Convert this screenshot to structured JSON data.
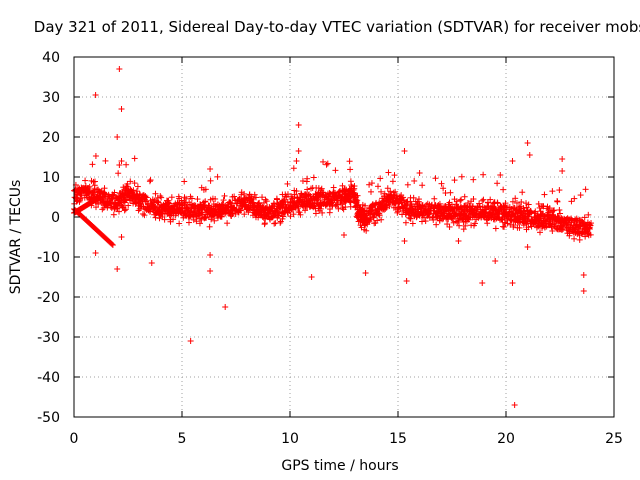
{
  "chart_data": {
    "type": "scatter",
    "title": "Day 321 of 2011, Sidereal Day-to-day VTEC variation (SDTVAR) for receiver mobs",
    "xlabel": "GPS time / hours",
    "ylabel": "SDTVAR / TECUs",
    "xlim": [
      0,
      25
    ],
    "ylim": [
      -50,
      40
    ],
    "xticks": [
      0,
      5,
      10,
      15,
      20,
      25
    ],
    "yticks": [
      40,
      30,
      20,
      10,
      0,
      -10,
      -20,
      -30,
      -40,
      -50
    ],
    "xtick_labels": [
      "0",
      "5",
      "10",
      "15",
      "20",
      "25"
    ],
    "ytick_labels": [
      "40",
      "30",
      "20",
      "10",
      "0",
      "-10",
      "-20",
      "-30",
      "-40",
      "-50"
    ],
    "grid": true,
    "marker": "+",
    "color": "#ff0000",
    "dense_trend": [
      [
        0.0,
        5.0
      ],
      [
        0.5,
        6.0
      ],
      [
        1.0,
        5.5
      ],
      [
        1.5,
        4.5
      ],
      [
        2.0,
        3.5
      ],
      [
        2.5,
        6.0
      ],
      [
        3.0,
        4.5
      ],
      [
        3.5,
        3.0
      ],
      [
        4.0,
        2.0
      ],
      [
        4.5,
        2.0
      ],
      [
        5.0,
        2.0
      ],
      [
        5.5,
        1.5
      ],
      [
        6.0,
        1.5
      ],
      [
        6.5,
        1.5
      ],
      [
        7.0,
        2.0
      ],
      [
        7.5,
        2.5
      ],
      [
        8.0,
        3.5
      ],
      [
        8.5,
        2.0
      ],
      [
        9.0,
        1.0
      ],
      [
        9.5,
        2.0
      ],
      [
        10.0,
        3.0
      ],
      [
        10.5,
        4.0
      ],
      [
        11.0,
        4.0
      ],
      [
        11.5,
        4.5
      ],
      [
        12.0,
        4.5
      ],
      [
        12.5,
        5.0
      ],
      [
        12.9,
        6.0
      ],
      [
        13.2,
        1.0
      ],
      [
        13.5,
        0.0
      ],
      [
        14.0,
        2.0
      ],
      [
        14.5,
        4.0
      ],
      [
        15.0,
        4.0
      ],
      [
        15.5,
        2.0
      ],
      [
        16.0,
        1.5
      ],
      [
        16.5,
        1.5
      ],
      [
        17.0,
        1.0
      ],
      [
        17.5,
        1.0
      ],
      [
        18.0,
        1.0
      ],
      [
        18.5,
        1.0
      ],
      [
        19.0,
        1.0
      ],
      [
        19.5,
        1.0
      ],
      [
        20.0,
        1.0
      ],
      [
        20.5,
        0.5
      ],
      [
        21.0,
        0.0
      ],
      [
        21.5,
        -0.5
      ],
      [
        22.0,
        -1.0
      ],
      [
        22.5,
        -1.5
      ],
      [
        23.0,
        -2.0
      ],
      [
        23.5,
        -2.5
      ],
      [
        23.95,
        -3.0
      ]
    ],
    "outliers": [
      [
        1.0,
        30.5
      ],
      [
        2.1,
        37.0
      ],
      [
        2.2,
        27.0
      ],
      [
        2.0,
        20.0
      ],
      [
        2.1,
        13.0
      ],
      [
        2.2,
        14.0
      ],
      [
        2.2,
        -5.0
      ],
      [
        2.0,
        -13.0
      ],
      [
        1.0,
        -9.0
      ],
      [
        3.6,
        -11.5
      ],
      [
        5.4,
        -31.0
      ],
      [
        6.3,
        12.0
      ],
      [
        6.3,
        -9.5
      ],
      [
        6.3,
        -13.5
      ],
      [
        7.0,
        -22.5
      ],
      [
        10.4,
        23.0
      ],
      [
        10.4,
        16.5
      ],
      [
        10.3,
        14.0
      ],
      [
        10.6,
        9.0
      ],
      [
        11.0,
        -15.0
      ],
      [
        12.5,
        -4.5
      ],
      [
        13.5,
        -14.0
      ],
      [
        15.3,
        16.5
      ],
      [
        15.3,
        -6.0
      ],
      [
        15.4,
        -16.0
      ],
      [
        16.0,
        11.0
      ],
      [
        18.9,
        -16.5
      ],
      [
        19.5,
        -11.0
      ],
      [
        20.3,
        14.0
      ],
      [
        20.3,
        -16.5
      ],
      [
        20.4,
        -47.0
      ],
      [
        21.0,
        18.5
      ],
      [
        21.1,
        15.5
      ],
      [
        21.0,
        -7.5
      ],
      [
        22.6,
        14.5
      ],
      [
        22.6,
        11.5
      ],
      [
        23.6,
        -14.5
      ],
      [
        23.6,
        -18.5
      ],
      [
        17.2,
        6.0
      ],
      [
        17.8,
        -6.0
      ]
    ]
  }
}
